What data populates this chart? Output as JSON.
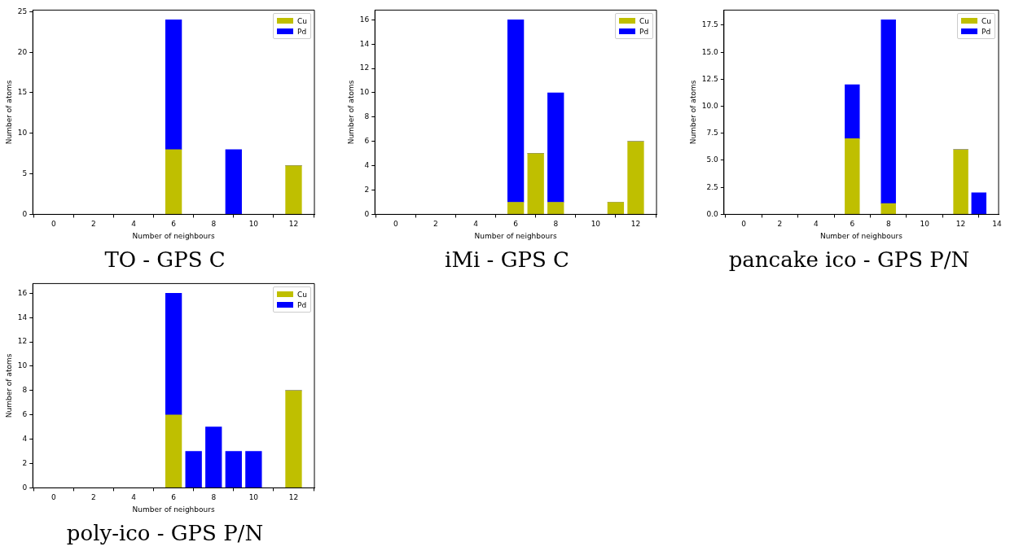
{
  "chart_data": [
    {
      "type": "bar",
      "title": "TO - GPS C",
      "xlabel": "Number of neighbours",
      "ylabel": "Number of atoms",
      "stacked": true,
      "legend": "top right",
      "grid": false,
      "x": [
        6,
        9,
        12
      ],
      "series": [
        {
          "name": "Cu",
          "color": "#bfbf00",
          "values": [
            8,
            0,
            6
          ]
        },
        {
          "name": "Pd",
          "color": "#0000ff",
          "values": [
            16,
            8,
            0
          ]
        }
      ],
      "xlim": [
        -1.04,
        13.04
      ],
      "xticks": [
        0,
        2,
        4,
        6,
        8,
        10,
        12
      ],
      "ylim": [
        0,
        25.2
      ],
      "yticks": [
        0,
        5,
        10,
        15,
        20,
        25
      ]
    },
    {
      "type": "bar",
      "title": "iMi - GPS C",
      "xlabel": "Number of neighbours",
      "ylabel": "Number of atoms",
      "stacked": true,
      "legend": "top right",
      "grid": false,
      "x": [
        6,
        7,
        8,
        11,
        12
      ],
      "series": [
        {
          "name": "Cu",
          "color": "#bfbf00",
          "values": [
            1,
            5,
            1,
            1,
            6
          ]
        },
        {
          "name": "Pd",
          "color": "#0000ff",
          "values": [
            15,
            0,
            9,
            0,
            0
          ]
        }
      ],
      "xlim": [
        -1.04,
        13.04
      ],
      "xticks": [
        0,
        2,
        4,
        6,
        8,
        10,
        12
      ],
      "ylim": [
        0,
        16.8
      ],
      "yticks": [
        0,
        2,
        4,
        6,
        8,
        10,
        12,
        14,
        16
      ]
    },
    {
      "type": "bar",
      "title": "pancake ico - GPS P/N",
      "xlabel": "Number of neighbours",
      "ylabel": "Number of atoms",
      "stacked": true,
      "legend": "top right",
      "grid": false,
      "x": [
        6,
        8,
        12,
        13
      ],
      "series": [
        {
          "name": "Cu",
          "color": "#bfbf00",
          "values": [
            7,
            1,
            6,
            0
          ]
        },
        {
          "name": "Pd",
          "color": "#0000ff",
          "values": [
            5,
            17,
            0,
            2
          ]
        }
      ],
      "xlim": [
        -1.09,
        14.09
      ],
      "xticks": [
        0,
        2,
        4,
        6,
        8,
        10,
        12,
        14
      ],
      "ylim": [
        0,
        18.9
      ],
      "yticks": [
        {
          "value": 0,
          "label": "0.0"
        },
        {
          "value": 2.5,
          "label": "2.5"
        },
        {
          "value": 5,
          "label": "5.0"
        },
        {
          "value": 7.5,
          "label": "7.5"
        },
        {
          "value": 10,
          "label": "10.0"
        },
        {
          "value": 12.5,
          "label": "12.5"
        },
        {
          "value": 15,
          "label": "15.0"
        },
        {
          "value": 17.5,
          "label": "17.5"
        }
      ]
    },
    {
      "type": "bar",
      "title": "poly-ico - GPS P/N",
      "xlabel": "Number of neighbours",
      "ylabel": "Number of atoms",
      "stacked": true,
      "legend": "top right",
      "grid": false,
      "x": [
        6,
        7,
        8,
        9,
        10,
        12
      ],
      "series": [
        {
          "name": "Cu",
          "color": "#bfbf00",
          "values": [
            6,
            0,
            0,
            0,
            0,
            8
          ]
        },
        {
          "name": "Pd",
          "color": "#0000ff",
          "values": [
            10,
            3,
            5,
            3,
            3,
            0
          ]
        }
      ],
      "xlim": [
        -1.04,
        13.04
      ],
      "xticks": [
        0,
        2,
        4,
        6,
        8,
        10,
        12
      ],
      "ylim": [
        0,
        16.8
      ],
      "yticks": [
        0,
        2,
        4,
        6,
        8,
        10,
        12,
        14,
        16
      ]
    }
  ]
}
